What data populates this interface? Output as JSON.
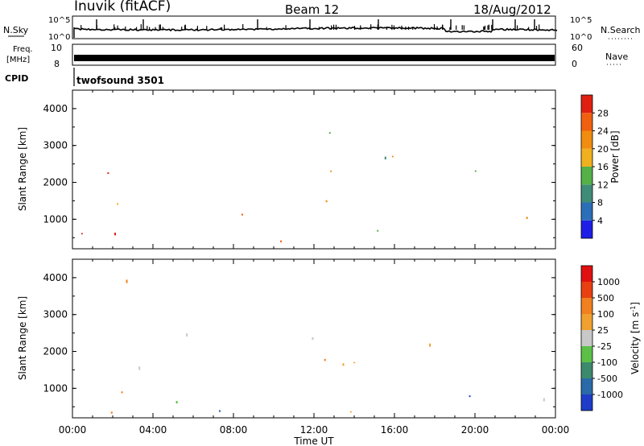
{
  "header": {
    "station": "Inuvik (fitACF)",
    "beam": "Beam 12",
    "date": "18/Aug/2012"
  },
  "summary": {
    "nsky_label": "N.Sky",
    "nsky_ticks": [
      "10^5",
      "10^0"
    ],
    "nsearch_label": "N.Search",
    "freq_label_1": "Freq.",
    "freq_label_2": "[MHz]",
    "freq_ticks": [
      "10",
      "8"
    ],
    "nave_label": "Nave",
    "nave_ticks": [
      "60",
      "0"
    ],
    "cpid_label": "CPID",
    "cpid_value": "twofsound 3501"
  },
  "chart_data": [
    {
      "type": "heatmap",
      "name": "power-panel",
      "xlabel": "",
      "ylabel": "Slant Range [km]",
      "yticks": [
        "1000",
        "2000",
        "3000",
        "4000"
      ],
      "ylim": [
        200,
        4500
      ],
      "colorbar": {
        "label": "Power [dB]",
        "ticks": [
          "4",
          "8",
          "12",
          "16",
          "20",
          "24",
          "28"
        ],
        "colors": [
          "#1e1ee6",
          "#2b6fb8",
          "#3f8c78",
          "#55b048",
          "#f0b020",
          "#f08c10",
          "#f06010",
          "#e02010"
        ]
      }
    },
    {
      "type": "heatmap",
      "name": "velocity-panel",
      "xlabel": "Time UT",
      "ylabel": "Slant Range [km]",
      "yticks": [
        "1000",
        "2000",
        "3000",
        "4000"
      ],
      "xticks": [
        "00:00",
        "04:00",
        "08:00",
        "12:00",
        "16:00",
        "20:00",
        "00:00"
      ],
      "ylim": [
        200,
        4500
      ],
      "colorbar": {
        "label": "Velocity [m s",
        "label_sup": "-1",
        "label_end": "]",
        "ticks": [
          "1000",
          "500",
          "100",
          "25",
          "-25",
          "-100",
          "-500",
          "-1000"
        ],
        "colors": [
          "#1e3cc8",
          "#2a6aa8",
          "#3c8a6e",
          "#5cc048",
          "#c8c8c8",
          "#f0a030",
          "#f08020",
          "#e84010",
          "#e01010"
        ]
      }
    }
  ]
}
